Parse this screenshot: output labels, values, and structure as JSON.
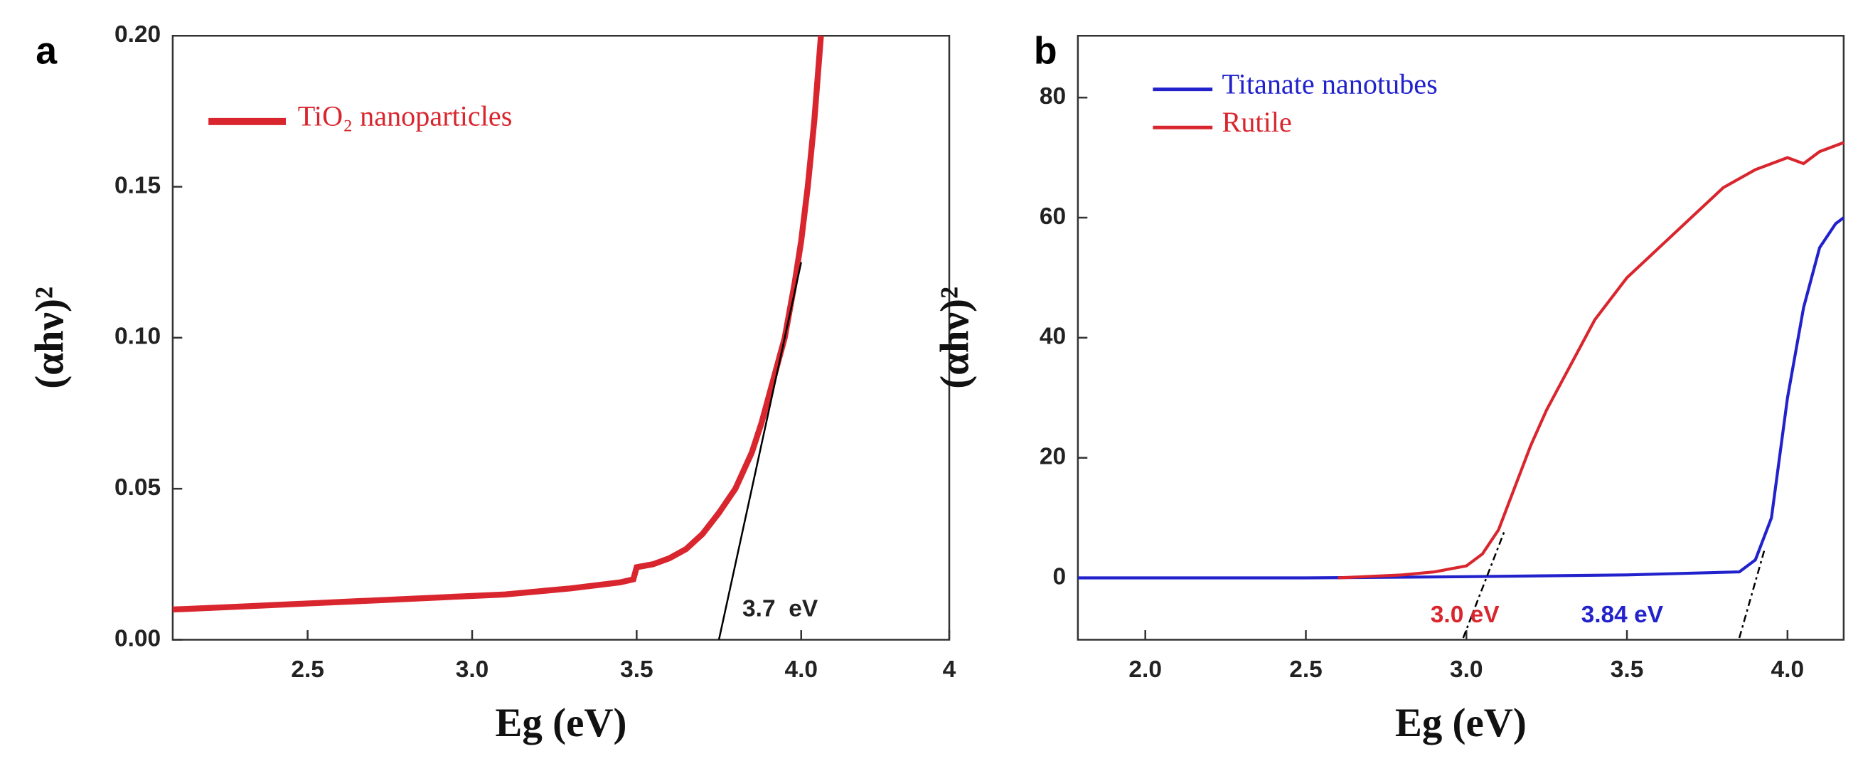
{
  "chart_data": [
    {
      "type": "line",
      "panel_label": "a",
      "xlabel": "Eg (eV)",
      "ylabel": "(αhν)²",
      "xlim": [
        2.09,
        4.45
      ],
      "ylim": [
        0,
        0.2
      ],
      "xticks": [
        2.5,
        {
          "value": 3,
          "label": "3.0"
        },
        3.5,
        {
          "value": 4,
          "label": "4.0"
        },
        {
          "value": 4.45,
          "label": "4"
        }
      ],
      "yticks": [
        {
          "value": 0,
          "label": "0.00"
        },
        {
          "value": 0.05,
          "label": "0.05"
        },
        {
          "value": 0.1,
          "label": "0.10"
        },
        {
          "value": 0.15,
          "label": "0.15"
        },
        {
          "value": 0.2,
          "label": "0.20"
        }
      ],
      "series": [
        {
          "name": "TiO₂ nanoparticles",
          "color": "#d9262e",
          "x": [
            2.09,
            2.3,
            2.5,
            2.7,
            2.9,
            3.1,
            3.3,
            3.45,
            3.49,
            3.5,
            3.55,
            3.6,
            3.65,
            3.7,
            3.75,
            3.8,
            3.85,
            3.88,
            3.92,
            3.95,
            3.98,
            4.0,
            4.02,
            4.04,
            4.06
          ],
          "values": [
            0.01,
            0.011,
            0.012,
            0.013,
            0.014,
            0.015,
            0.017,
            0.019,
            0.02,
            0.024,
            0.025,
            0.027,
            0.03,
            0.035,
            0.042,
            0.05,
            0.062,
            0.072,
            0.088,
            0.1,
            0.118,
            0.132,
            0.15,
            0.172,
            0.2
          ]
        }
      ],
      "fit_lines": [
        {
          "color": "#000000",
          "dashed": false,
          "x": [
            3.75,
            4.0
          ],
          "y": [
            0,
            0.125
          ]
        }
      ],
      "annotations": [
        {
          "text": "3.7  eV",
          "color": "#222222"
        }
      ]
    },
    {
      "type": "line",
      "panel_label": "b",
      "xlabel": "Eg (eV)",
      "ylabel": "(αhν)²",
      "xlim": [
        1.79,
        4.175
      ],
      "ylim": [
        -10.3,
        90.3
      ],
      "xticks": [
        {
          "value": 2,
          "label": "2.0"
        },
        2.5,
        {
          "value": 3,
          "label": "3.0"
        },
        3.5,
        {
          "value": 4,
          "label": "4.0"
        }
      ],
      "yticks": [
        0,
        20,
        40,
        60,
        80
      ],
      "series": [
        {
          "name": "Titanate nanotubes",
          "color": "#2222cc",
          "x": [
            1.79,
            2.5,
            3.0,
            3.5,
            3.85,
            3.9,
            3.95,
            4.0,
            4.05,
            4.1,
            4.15,
            4.175
          ],
          "values": [
            0,
            0,
            0.2,
            0.5,
            1,
            3,
            10,
            30,
            45,
            55,
            59,
            60
          ]
        },
        {
          "name": "Rutile",
          "color": "#d9262e",
          "x": [
            2.6,
            2.8,
            2.9,
            3.0,
            3.05,
            3.1,
            3.15,
            3.2,
            3.25,
            3.3,
            3.35,
            3.4,
            3.5,
            3.6,
            3.7,
            3.8,
            3.9,
            4.0,
            4.05,
            4.1,
            4.175
          ],
          "values": [
            0,
            0.5,
            1,
            2,
            4,
            8,
            15,
            22,
            28,
            33,
            38,
            43,
            50,
            55,
            60,
            65,
            68,
            70,
            69,
            71,
            72.5
          ]
        }
      ],
      "fit_lines": [
        {
          "color": "#000000",
          "dashed": true,
          "x": [
            2.99,
            3.12
          ],
          "y": [
            -10,
            8
          ]
        },
        {
          "color": "#000000",
          "dashed": true,
          "x": [
            3.85,
            3.93
          ],
          "y": [
            -10,
            5
          ]
        }
      ],
      "annotations": [
        {
          "text": "3.0 eV",
          "color": "#d9262e"
        },
        {
          "text": "3.84 eV",
          "color": "#2222cc"
        }
      ]
    }
  ]
}
